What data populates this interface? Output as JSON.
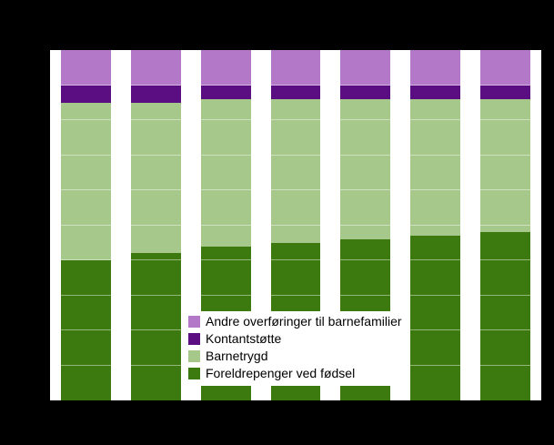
{
  "chart_data": {
    "type": "bar",
    "stacked": true,
    "percent_stacked": true,
    "title": "",
    "xlabel": "",
    "ylabel": "",
    "ylim": [
      0,
      100
    ],
    "grid": true,
    "categories": [
      "",
      "",
      "",
      "",
      "",
      "",
      ""
    ],
    "series": [
      {
        "name": "Foreldrepenger ved fødsel",
        "color": "#3c7a0f",
        "values": [
          40,
          42,
          44,
          45,
          46,
          47,
          48
        ]
      },
      {
        "name": "Barnetrygd",
        "color": "#a6c98b",
        "values": [
          45,
          43,
          42,
          41,
          40,
          39,
          38
        ]
      },
      {
        "name": "Kontantstøtte",
        "color": "#5b0d82",
        "values": [
          5,
          5,
          4,
          4,
          4,
          4,
          4
        ]
      },
      {
        "name": "Andre overføringer til barnefamilier",
        "color": "#b379c8",
        "values": [
          10,
          10,
          10,
          10,
          10,
          10,
          10
        ]
      }
    ],
    "legend_position": "inside-bottom-left",
    "legend": [
      {
        "label": "Andre overføringer til barnefamilier",
        "color": "#b379c8"
      },
      {
        "label": "Kontantstøtte",
        "color": "#5b0d82"
      },
      {
        "label": "Barnetrygd",
        "color": "#a6c98b"
      },
      {
        "label": "Foreldrepenger ved fødsel",
        "color": "#3c7a0f"
      }
    ]
  },
  "colors": {
    "page_background": "#000000",
    "plot_background": "#ffffff"
  }
}
